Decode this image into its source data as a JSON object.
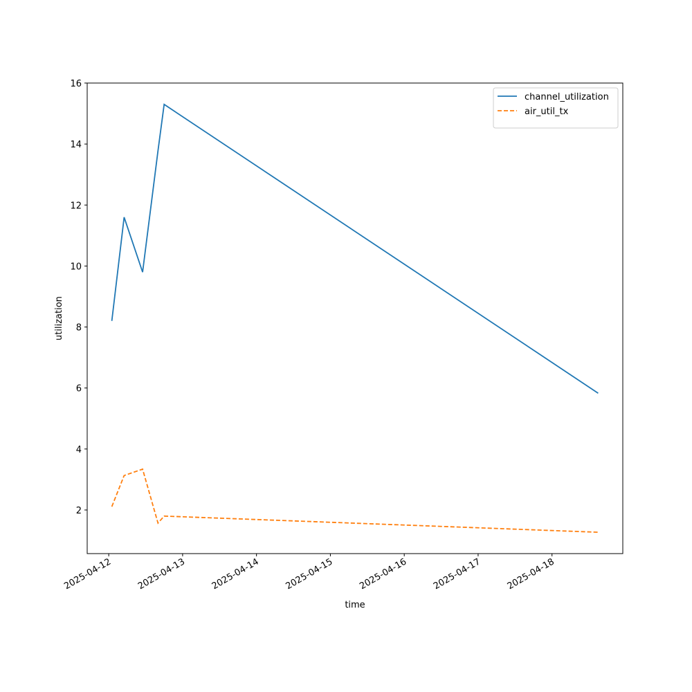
{
  "chart_data": {
    "type": "line",
    "x_label": "time",
    "y_label": "utilization",
    "x": [
      "2025-04-12T01:00",
      "2025-04-12T05:00",
      "2025-04-12T11:00",
      "2025-04-12T16:00",
      "2025-04-12T18:00",
      "2025-04-18T15:00"
    ],
    "series": [
      {
        "name": "channel_utilization",
        "color": "#1f77b4",
        "dash": "solid",
        "values": [
          8.2,
          11.6,
          9.8,
          13.78,
          15.3,
          5.83
        ]
      },
      {
        "name": "air_util_tx",
        "color": "#ff7f0e",
        "dash": "dashed",
        "values": [
          2.11,
          3.13,
          3.34,
          1.57,
          1.8,
          1.27
        ]
      }
    ],
    "xlim": [
      "2025-04-11T17:00",
      "2025-04-18T23:00"
    ],
    "xticks": [
      "2025-04-12",
      "2025-04-13",
      "2025-04-14",
      "2025-04-15",
      "2025-04-16",
      "2025-04-17",
      "2025-04-18"
    ],
    "ylim": [
      0.57,
      16
    ],
    "yticks": [
      2,
      4,
      6,
      8,
      10,
      12,
      14,
      16
    ],
    "grid": false,
    "legend": "upper right"
  }
}
